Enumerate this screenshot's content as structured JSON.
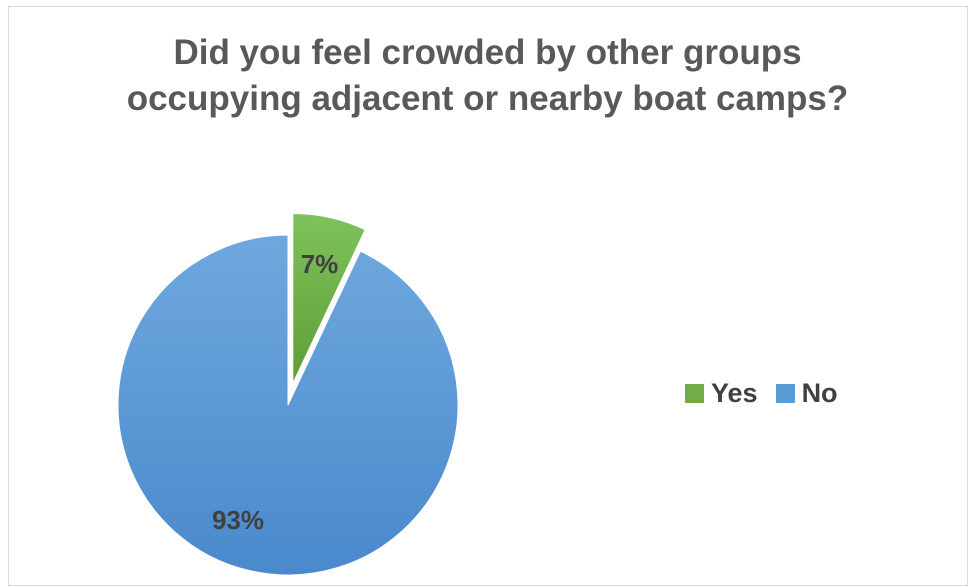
{
  "chart_data": {
    "type": "pie",
    "title_lines": [
      "Did you feel crowded by other groups",
      "occupying adjacent or nearby boat camps?"
    ],
    "slices": [
      {
        "label": "Yes",
        "value": 7,
        "data_label": "7%",
        "color": "#70ad47",
        "exploded": true
      },
      {
        "label": "No",
        "value": 93,
        "data_label": "93%",
        "color": "#5b9bd5",
        "exploded": false
      }
    ],
    "legend_position": "right",
    "legend_items": [
      {
        "label": "Yes",
        "color": "#70ad47"
      },
      {
        "label": "No",
        "color": "#5b9bd5"
      }
    ]
  }
}
